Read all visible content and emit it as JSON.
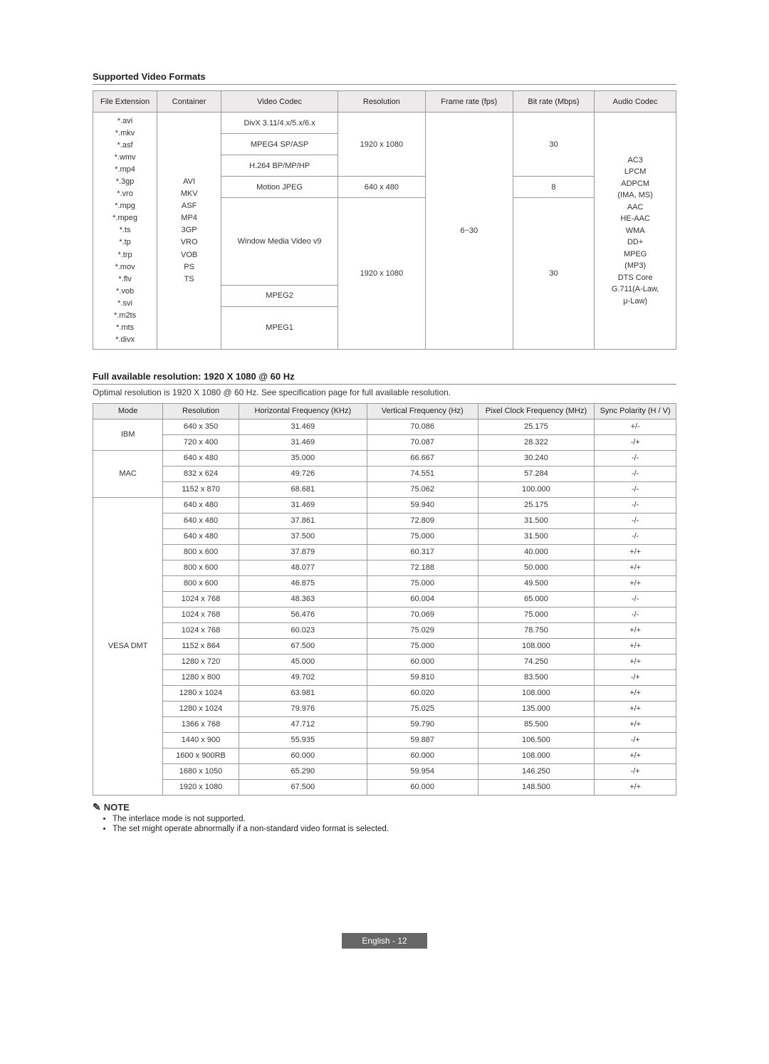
{
  "section1": {
    "title": "Supported Video Formats",
    "headers": [
      "File Extension",
      "Container",
      "Video Codec",
      "Resolution",
      "Frame rate (fps)",
      "Bit rate (Mbps)",
      "Audio Codec"
    ],
    "file_ext": "*.avi\n*.mkv\n*.asf\n*.wmv\n*.mp4\n*.3gp\n*.vro\n*.mpg\n*.mpeg\n*.ts\n*.tp\n*.trp\n*.mov\n*.flv\n*.vob\n*.svi\n*.m2ts\n*.mts\n*.divx",
    "container": "AVI\nMKV\nASF\nMP4\n3GP\nVRO\nVOB\nPS\nTS",
    "codec": [
      "DivX 3.11/4.x/5.x/6.x",
      "MPEG4 SP/ASP",
      "H.264 BP/MP/HP",
      "Motion JPEG",
      "Window Media Video v9",
      "MPEG2",
      "MPEG1"
    ],
    "res1": "1920 x 1080",
    "res2": "640 x 480",
    "res3": "1920 x 1080",
    "fps": "6~30",
    "br1": "30",
    "br2": "8",
    "br3": "30",
    "audio": "AC3\nLPCM\nADPCM\n(IMA, MS)\nAAC\nHE-AAC\nWMA\nDD+\nMPEG\n(MP3)\nDTS Core\nG.711(A-Law,\nμ-Law)"
  },
  "section2": {
    "title": "Full available resolution: 1920 X 1080 @ 60 Hz",
    "subtitle": "Optimal resolution is 1920 X 1080 @ 60 Hz. See specification page for full available resolution.",
    "headers": [
      "Mode",
      "Resolution",
      "Horizontal Frequency (KHz)",
      "Vertical Frequency (Hz)",
      "Pixel Clock Frequency (MHz)",
      "Sync Polarity (H / V)"
    ],
    "groups": [
      {
        "mode": "IBM",
        "span": 2,
        "rows": [
          [
            "640 x 350",
            "31.469",
            "70.086",
            "25.175",
            "+/-"
          ],
          [
            "720 x 400",
            "31.469",
            "70.087",
            "28.322",
            "-/+"
          ]
        ]
      },
      {
        "mode": "MAC",
        "span": 3,
        "rows": [
          [
            "640 x 480",
            "35.000",
            "66.667",
            "30.240",
            "-/-"
          ],
          [
            "832 x 624",
            "49.726",
            "74.551",
            "57.284",
            "-/-"
          ],
          [
            "1152 x 870",
            "68.681",
            "75.062",
            "100.000",
            "-/-"
          ]
        ]
      },
      {
        "mode": "VESA DMT",
        "span": 19,
        "rows": [
          [
            "640 x 480",
            "31.469",
            "59.940",
            "25.175",
            "-/-"
          ],
          [
            "640 x 480",
            "37.861",
            "72.809",
            "31.500",
            "-/-"
          ],
          [
            "640 x 480",
            "37.500",
            "75.000",
            "31.500",
            "-/-"
          ],
          [
            "800 x 600",
            "37.879",
            "60.317",
            "40.000",
            "+/+"
          ],
          [
            "800 x 600",
            "48.077",
            "72.188",
            "50.000",
            "+/+"
          ],
          [
            "800 x 600",
            "46.875",
            "75.000",
            "49.500",
            "+/+"
          ],
          [
            "1024 x 768",
            "48.363",
            "60.004",
            "65.000",
            "-/-"
          ],
          [
            "1024 x 768",
            "56.476",
            "70.069",
            "75.000",
            "-/-"
          ],
          [
            "1024 x 768",
            "60.023",
            "75.029",
            "78.750",
            "+/+"
          ],
          [
            "1152 x 864",
            "67.500",
            "75.000",
            "108.000",
            "+/+"
          ],
          [
            "1280 x 720",
            "45.000",
            "60.000",
            "74.250",
            "+/+"
          ],
          [
            "1280 x 800",
            "49.702",
            "59.810",
            "83.500",
            "-/+"
          ],
          [
            "1280 x 1024",
            "63.981",
            "60.020",
            "108.000",
            "+/+"
          ],
          [
            "1280 x 1024",
            "79.976",
            "75.025",
            "135.000",
            "+/+"
          ],
          [
            "1366 x 768",
            "47.712",
            "59.790",
            "85.500",
            "+/+"
          ],
          [
            "1440 x 900",
            "55.935",
            "59.887",
            "106.500",
            "-/+"
          ],
          [
            "1600 x 900RB",
            "60.000",
            "60.000",
            "108.000",
            "+/+"
          ],
          [
            "1680 x 1050",
            "65.290",
            "59.954",
            "146.250",
            "-/+"
          ],
          [
            "1920 x 1080",
            "67.500",
            "60.000",
            "148.500",
            "+/+"
          ]
        ]
      }
    ]
  },
  "notes": {
    "label": "NOTE",
    "items": [
      "The interlace mode is not supported.",
      "The set might operate abnormally if a non-standard video format is selected."
    ]
  },
  "footer": "English - 12"
}
